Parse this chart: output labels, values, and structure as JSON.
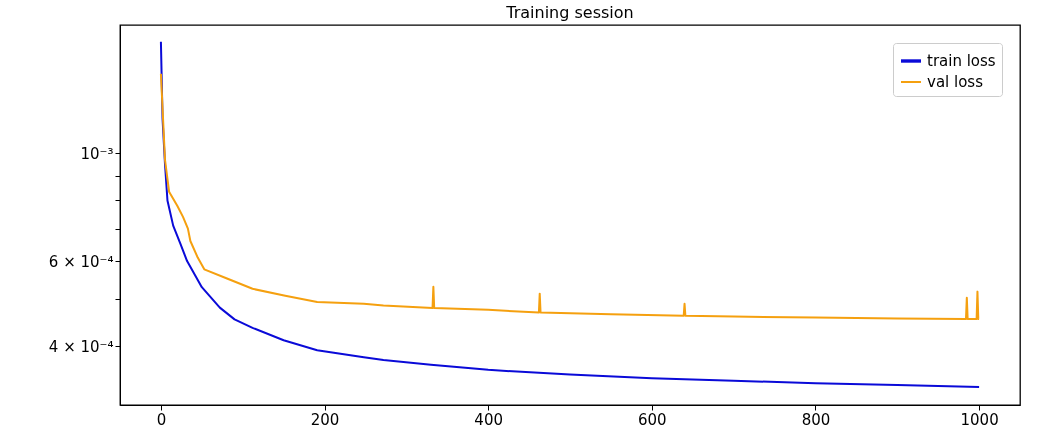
{
  "chart_data": {
    "type": "line",
    "title": "Training session",
    "log": "y",
    "grid": false,
    "legend": "top right",
    "marker": "none",
    "line_style": "solid",
    "xlim": [
      -50,
      1050
    ],
    "xticks": [
      0,
      200,
      400,
      600,
      800,
      1000
    ],
    "ylim": [
      0.000303,
      0.00184
    ],
    "yticks": [
      {
        "value": 0.0004,
        "label": "4 × 10⁻⁴"
      },
      {
        "value": 0.0005,
        "label": null
      },
      {
        "value": 0.0006,
        "label": "6 × 10⁻⁴"
      },
      {
        "value": 0.0007,
        "label": null
      },
      {
        "value": 0.0008,
        "label": null
      },
      {
        "value": 0.0009,
        "label": null
      },
      {
        "value": 0.001,
        "label": "10⁻³"
      }
    ],
    "series": [
      {
        "name": "train loss",
        "color": "#0a0ad8",
        "x": [
          0,
          2,
          5,
          8,
          15,
          24,
          32,
          50,
          72,
          90,
          112,
          150,
          191,
          248,
          272,
          330,
          400,
          500,
          600,
          700,
          800,
          900,
          1000
        ],
        "values": [
          0.0017,
          0.00118,
          0.00095,
          0.0008,
          0.00071,
          0.00065,
          0.0006,
          0.00053,
          0.000481,
          0.000455,
          0.000437,
          0.000412,
          0.000393,
          0.00038,
          0.000375,
          0.000367,
          0.000358,
          0.00035,
          0.000344,
          0.00034,
          0.000336,
          0.000333,
          0.00033
        ]
      },
      {
        "name": "val loss",
        "color": "#f5a00f",
        "x": [
          0,
          5,
          10,
          20,
          27,
          33,
          36,
          45,
          53,
          80,
          112,
          152,
          191,
          248,
          272,
          332,
          333,
          334,
          400,
          462,
          463,
          464,
          550,
          639,
          640,
          641,
          700,
          800,
          900,
          984,
          985,
          986,
          997,
          998,
          999,
          1000
        ],
        "values": [
          0.00146,
          0.00097,
          0.000834,
          0.00078,
          0.00074,
          0.0007,
          0.00066,
          0.00061,
          0.000577,
          0.000553,
          0.000526,
          0.000509,
          0.000494,
          0.00049,
          0.000486,
          0.00048,
          0.000531,
          0.00048,
          0.000476,
          0.00047,
          0.000514,
          0.00047,
          0.000466,
          0.000463,
          0.00049,
          0.000463,
          0.000461,
          0.000459,
          0.000457,
          0.000456,
          0.000504,
          0.000456,
          0.000456,
          0.000519,
          0.000456,
          0.000456
        ]
      }
    ]
  }
}
